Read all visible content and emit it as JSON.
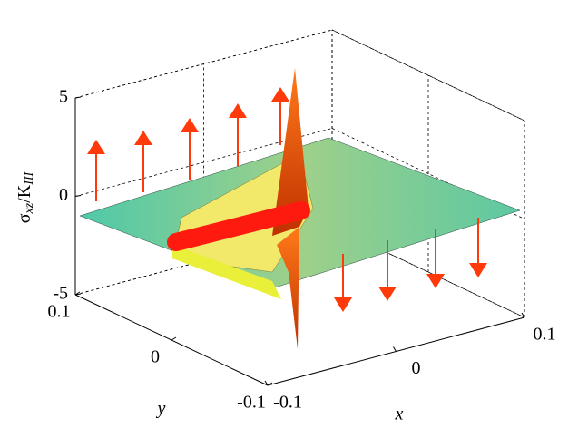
{
  "chart_data": {
    "type": "surface3d",
    "xlabel": "x",
    "ylabel": "y",
    "zlabel": [
      "σ",
      "xz",
      "/K",
      "III"
    ],
    "xlim": [
      -0.1,
      0.1
    ],
    "xticks": [
      -0.1,
      0,
      0.1
    ],
    "ylim": [
      -0.1,
      0.1
    ],
    "yticks": [
      -0.1,
      0,
      0.1
    ],
    "zlim": [
      -5,
      5
    ],
    "zticks": [
      -5,
      0,
      5
    ],
    "grid": true
  }
}
